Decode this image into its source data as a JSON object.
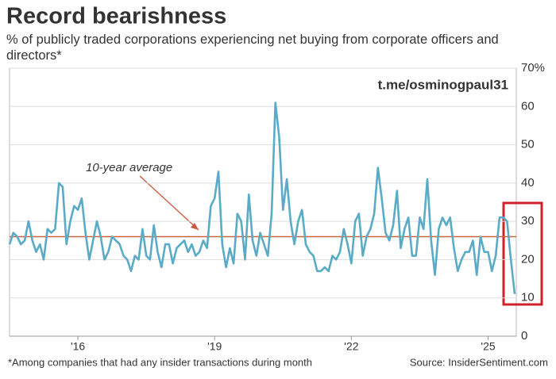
{
  "chart_data": {
    "type": "line",
    "title": "Record bearishness",
    "subtitle": "% of publicly traded corporations experiencing net buying from corporate officers and directors*",
    "watermark": "t.me/osminogpaul31",
    "annotation": "10-year average",
    "average": 26,
    "average_color": "#c8643c",
    "footnote": "*Among companies that had any insider transactions during month",
    "source": "Source: InsiderSentiment.com",
    "color": "#5aabc8",
    "categories": [
      null,
      null,
      null,
      null,
      null,
      null,
      null,
      null,
      null,
      null,
      null,
      null,
      null,
      null,
      null,
      null,
      null,
      null,
      "'16",
      null,
      null,
      null,
      null,
      null,
      null,
      null,
      null,
      null,
      null,
      null,
      null,
      null,
      null,
      null,
      null,
      null,
      null,
      null,
      null,
      null,
      null,
      null,
      null,
      null,
      null,
      null,
      null,
      null,
      null,
      null,
      null,
      null,
      null,
      null,
      "'19",
      null,
      null,
      null,
      null,
      null,
      null,
      null,
      null,
      null,
      null,
      null,
      null,
      null,
      null,
      null,
      null,
      null,
      null,
      null,
      null,
      null,
      null,
      null,
      null,
      null,
      null,
      null,
      null,
      null,
      null,
      null,
      null,
      null,
      null,
      null,
      "'22",
      null,
      null,
      null,
      null,
      null,
      null,
      null,
      null,
      null,
      null,
      null,
      null,
      null,
      null,
      null,
      null,
      null,
      null,
      null,
      null,
      null,
      null,
      null,
      null,
      null,
      null,
      null,
      null,
      null,
      null,
      null,
      null,
      null,
      null,
      null,
      "'25",
      null,
      null,
      null,
      null,
      null,
      null,
      null
    ],
    "values": [
      24,
      27,
      26,
      24,
      25,
      30,
      25,
      22,
      24,
      20,
      28,
      27,
      28,
      40,
      39,
      24,
      30,
      34,
      33,
      36,
      27,
      20,
      25,
      30,
      26,
      20,
      22,
      26,
      25,
      24,
      21,
      20,
      17,
      21,
      20,
      28,
      21,
      20,
      29,
      22,
      18,
      24,
      24,
      19,
      23,
      24,
      25,
      22,
      24,
      21,
      22,
      25,
      23,
      34,
      36,
      43,
      24,
      18,
      23,
      19,
      32,
      30,
      20,
      37,
      25,
      21,
      27,
      24,
      21,
      32,
      61,
      52,
      33,
      41,
      30,
      24,
      30,
      33,
      24,
      22,
      21,
      17,
      17,
      18,
      17,
      21,
      20,
      22,
      28,
      24,
      19,
      30,
      32,
      21,
      26,
      28,
      32,
      44,
      36,
      27,
      25,
      29,
      38,
      23,
      28,
      31,
      21,
      21,
      31,
      28,
      41,
      25,
      16,
      28,
      31,
      29,
      31,
      23,
      17,
      20,
      22,
      22,
      25,
      16,
      26,
      22,
      22,
      17,
      21,
      31,
      31,
      30,
      20,
      11
    ],
    "ylim": [
      0,
      70
    ],
    "yticks": [
      0,
      10,
      20,
      30,
      40,
      50,
      60,
      {
        "value": 70,
        "label": "70%"
      }
    ],
    "grid": true
  }
}
